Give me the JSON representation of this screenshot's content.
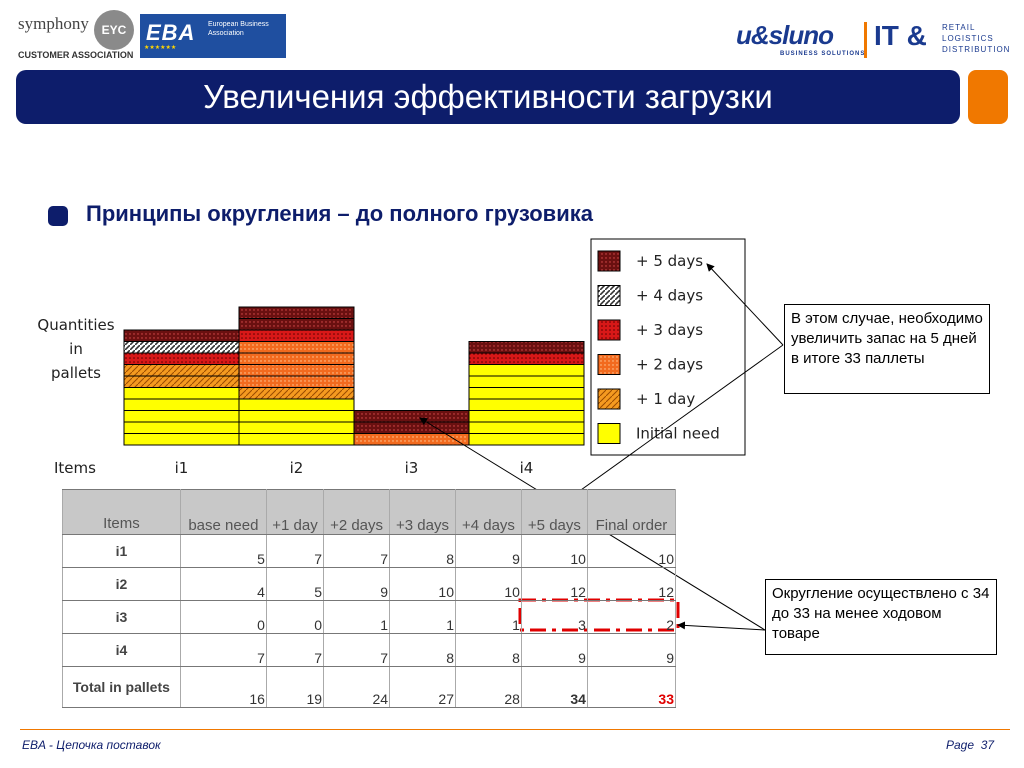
{
  "header": {
    "symphony_text": "symphony",
    "eyc_text": "EYC",
    "customer_association": "CUSTOMER ASSOCIATION",
    "eba_text": "EBA",
    "eba_subtitle": "European Business Association",
    "usluno_text": "u&sluno",
    "usluno_sub": "BUSINESS SOLUTIONS",
    "it_text": "IT &",
    "retail_lines": [
      "RETAIL",
      "LOGISTICS",
      "DISTRIBUTION"
    ],
    "title": "Увеличения эффективности загрузки"
  },
  "subtitle": "Принципы округления – до полного грузовика",
  "colors": {
    "navy": "#0d1d6b",
    "orange_accent": "#f07800",
    "initial_need": "#ffff00",
    "day1": "#f59a20",
    "day2": "#f26a1e",
    "day3": "#d81818",
    "day4": "#bbbbbb",
    "day5": "#6a1010"
  },
  "chart_data": {
    "type": "bar",
    "stacked": true,
    "ylabel": "Quantities in pallets",
    "ylabel_lines": [
      "Quantities",
      "in",
      "pallets"
    ],
    "xlabel": "Items",
    "categories": [
      "i1",
      "i2",
      "i3",
      "i4"
    ],
    "series": [
      {
        "name": "Initial need",
        "values": [
          5,
          4,
          0,
          7
        ]
      },
      {
        "name": "+ 1 day",
        "values": [
          2,
          1,
          0,
          0
        ]
      },
      {
        "name": "+ 2 days",
        "values": [
          0,
          4,
          1,
          0
        ]
      },
      {
        "name": "+ 3 days",
        "values": [
          1,
          1,
          0,
          1
        ]
      },
      {
        "name": "+ 4 days",
        "values": [
          1,
          0,
          0,
          0
        ]
      },
      {
        "name": "+ 5 days",
        "values": [
          1,
          2,
          2,
          1
        ]
      }
    ],
    "legend_order": [
      "+ 5 days",
      "+ 4 days",
      "+ 3 days",
      "+ 2 days",
      "+ 1 day",
      "Initial need"
    ],
    "legend_position": "right",
    "grid": false
  },
  "table": {
    "headers": [
      "Items",
      "base need",
      "+1 day",
      "+2 days",
      "+3 days",
      "+4 days",
      "+5 days",
      "Final order"
    ],
    "rows": [
      {
        "item": "i1",
        "values": [
          "5",
          "7",
          "7",
          "8",
          "9",
          "10",
          "10"
        ]
      },
      {
        "item": "i2",
        "values": [
          "4",
          "5",
          "9",
          "10",
          "10",
          "12",
          "12"
        ]
      },
      {
        "item": "i3",
        "values": [
          "0",
          "0",
          "1",
          "1",
          "1",
          "3",
          "2"
        ]
      },
      {
        "item": "i4",
        "values": [
          "7",
          "7",
          "7",
          "8",
          "8",
          "9",
          "9"
        ]
      }
    ],
    "total": {
      "label": "Total in pallets",
      "values": [
        "16",
        "19",
        "24",
        "27",
        "28",
        "34",
        "33"
      ]
    }
  },
  "callouts": {
    "top": "В этом случае, необходимо увеличить запас на 5 дней в итоге 33 паллеты",
    "bottom": "Округление осуществлено с 34 до 33 на менее ходовом товаре"
  },
  "footer": {
    "left": "EBA - Цепочка поставок",
    "page_label": "Page",
    "page_number": "37"
  }
}
